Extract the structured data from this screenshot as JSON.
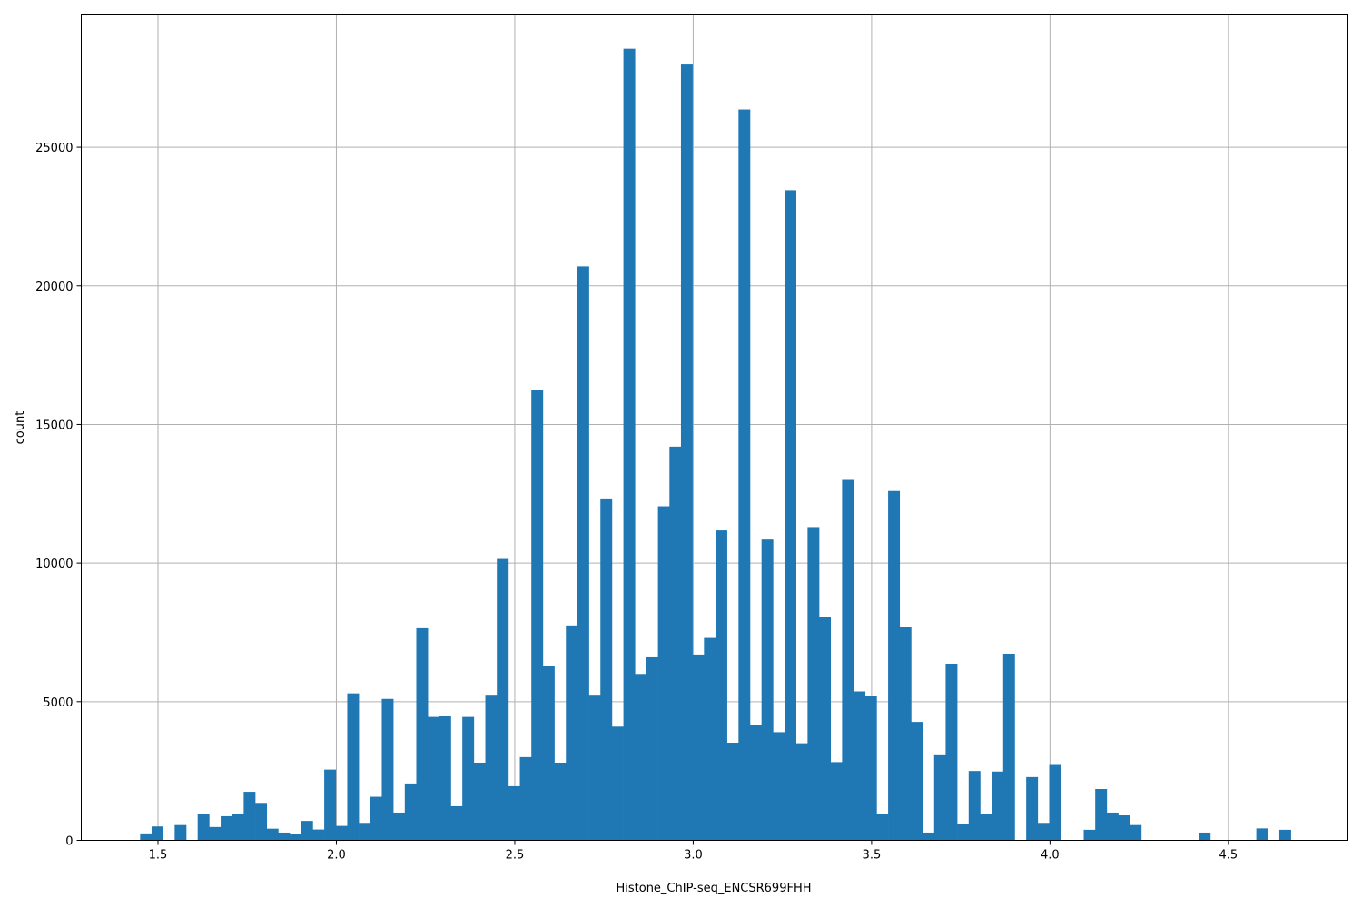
{
  "chart_data": {
    "type": "bar",
    "subtype": "histogram",
    "xlabel": "Histone_ChIP-seq_ENCSR699FHH",
    "ylabel": "count",
    "xlim": [
      1.285,
      4.835
    ],
    "ylim": [
      0,
      29800
    ],
    "xticks": [
      1.5,
      2.0,
      2.5,
      3.0,
      3.5,
      4.0,
      4.5
    ],
    "xtick_labels": [
      "1.5",
      "2.0",
      "2.5",
      "3.0",
      "3.5",
      "4.0",
      "4.5"
    ],
    "yticks": [
      0,
      5000,
      10000,
      15000,
      20000,
      25000
    ],
    "ytick_labels": [
      "0",
      "5000",
      "10000",
      "15000",
      "20000",
      "25000"
    ],
    "grid": true,
    "bar_color": "#1f77b4",
    "bin_start": 1.45,
    "bin_width": 0.03225,
    "counts": [
      250,
      500,
      0,
      550,
      0,
      950,
      480,
      870,
      950,
      1750,
      1350,
      420,
      280,
      230,
      700,
      390,
      2550,
      520,
      5300,
      630,
      1570,
      5100,
      1000,
      2050,
      7650,
      4450,
      4500,
      1230,
      4450,
      2800,
      5250,
      10150,
      1950,
      3000,
      16250,
      6300,
      2800,
      7750,
      20700,
      5250,
      12300,
      4100,
      28550,
      6000,
      6600,
      12050,
      14200,
      27980,
      6700,
      7300,
      11180,
      3520,
      26360,
      4170,
      10850,
      3900,
      23450,
      3500,
      11300,
      8050,
      2820,
      13000,
      5370,
      5200,
      950,
      12600,
      7700,
      4270,
      280,
      3100,
      6370,
      600,
      2500,
      950,
      2480,
      6730,
      0,
      2280,
      630,
      2750,
      0,
      0,
      380,
      1850,
      1000,
      900,
      550,
      0,
      0,
      0,
      0,
      0,
      280,
      0,
      0,
      0,
      0,
      430,
      0,
      380
    ]
  }
}
